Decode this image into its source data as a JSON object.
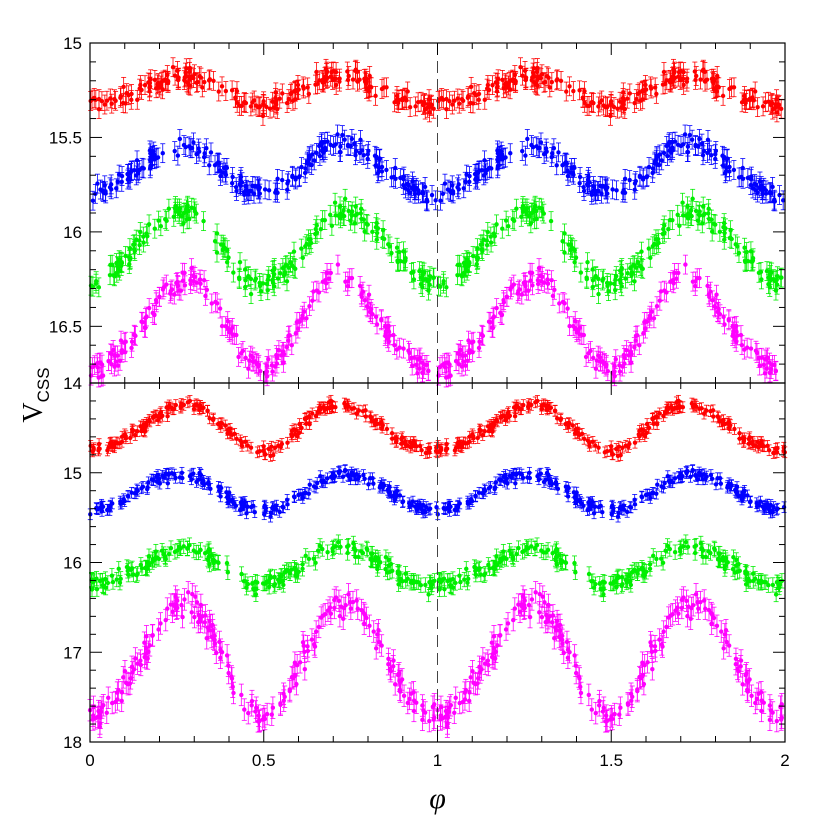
{
  "chart_data": {
    "type": "scatter",
    "xlabel": "φ",
    "ylabel": "V",
    "ylabel_subscript": "CSS",
    "xlim": [
      0,
      2
    ],
    "x_ticks": [
      0,
      0.5,
      1,
      1.5,
      2
    ],
    "x_tick_labels": [
      "0",
      "0.5",
      "1",
      "1.5",
      "2"
    ],
    "reference_line_x": 1,
    "panels": [
      {
        "name": "top",
        "ylim": [
          15,
          16.8
        ],
        "y_inverted": true,
        "y_ticks": [
          15,
          15.5,
          16,
          16.5
        ],
        "y_tick_labels": [
          "15",
          "15.5",
          "16",
          "16.5"
        ],
        "series": [
          {
            "name": "red",
            "color": "#ff0000",
            "base": 15.33,
            "primary_depth": 0.17,
            "secondary_depth": 0.07,
            "scatter": 0.04,
            "err": 0.05
          },
          {
            "name": "blue",
            "color": "#0000ff",
            "base": 15.8,
            "primary_depth": 0.28,
            "secondary_depth": 0.16,
            "scatter": 0.04,
            "err": 0.05
          },
          {
            "name": "green",
            "color": "#00ee00",
            "base": 16.27,
            "primary_depth": 0.4,
            "secondary_depth": 0.3,
            "scatter": 0.05,
            "err": 0.05
          },
          {
            "name": "magenta",
            "color": "#ff00ff",
            "base": 16.72,
            "primary_depth": 0.52,
            "secondary_depth": 0.22,
            "scatter": 0.05,
            "err": 0.05,
            "flat_bottom": true
          }
        ]
      },
      {
        "name": "bottom",
        "ylim": [
          14,
          18
        ],
        "y_inverted": true,
        "y_ticks": [
          14,
          15,
          16,
          17,
          18
        ],
        "y_tick_labels": [
          "14",
          "15",
          "16",
          "17",
          "18"
        ],
        "series": [
          {
            "name": "red",
            "color": "#ff0000",
            "base": 14.75,
            "primary_depth": 0.55,
            "secondary_depth": 0.25,
            "scatter": 0.05,
            "err": 0.06
          },
          {
            "name": "blue",
            "color": "#0000ff",
            "base": 15.42,
            "primary_depth": 0.42,
            "secondary_depth": 0.3,
            "scatter": 0.06,
            "err": 0.06
          },
          {
            "name": "green",
            "color": "#00ee00",
            "base": 16.25,
            "primary_depth": 0.45,
            "secondary_depth": 0.22,
            "scatter": 0.08,
            "err": 0.08
          },
          {
            "name": "magenta",
            "color": "#ff00ff",
            "base": 17.7,
            "primary_depth": 1.3,
            "secondary_depth": 0.85,
            "scatter": 0.12,
            "err": 0.12,
            "flat_bottom": true
          }
        ]
      }
    ]
  }
}
